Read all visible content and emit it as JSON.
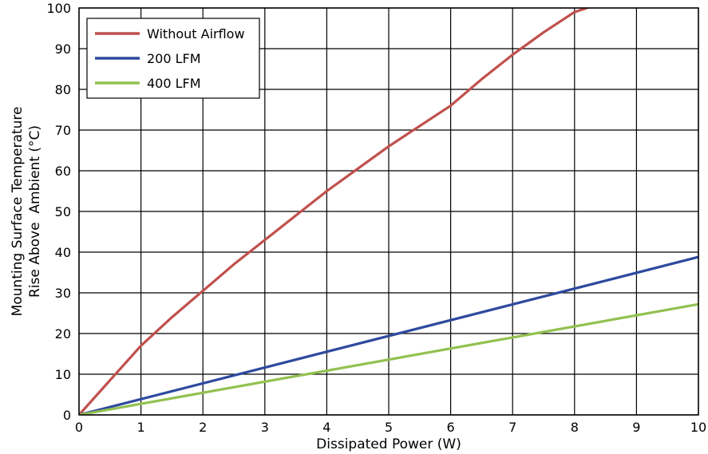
{
  "chart_data": {
    "type": "line",
    "title": "",
    "xlabel": "Dissipated Power (W)",
    "ylabel_lines": [
      "Mounting Surface Temperature",
      "Rise Above  Ambient (°C)"
    ],
    "xlim": [
      0,
      10
    ],
    "ylim": [
      0,
      100
    ],
    "xticks": [
      0,
      1,
      2,
      3,
      4,
      5,
      6,
      7,
      8,
      9,
      10
    ],
    "yticks": [
      0,
      10,
      20,
      30,
      40,
      50,
      60,
      70,
      80,
      90,
      100
    ],
    "grid": true,
    "legend_position": "top-left",
    "series": [
      {
        "name": "Without Airflow",
        "color": "#c0504d",
        "x": [
          0,
          0.5,
          1,
          1.5,
          2,
          2.5,
          3,
          3.5,
          4,
          4.5,
          5,
          5.5,
          6,
          6.5,
          7,
          7.5,
          8,
          8.2
        ],
        "y": [
          0,
          8.5,
          17,
          24,
          30.5,
          37,
          43,
          49,
          55,
          60.5,
          66,
          71,
          76,
          82.5,
          88.5,
          94,
          99,
          100
        ]
      },
      {
        "name": "200 LFM",
        "color": "#2e4a9e",
        "x": [
          0,
          10
        ],
        "y": [
          0,
          38.8
        ]
      },
      {
        "name": "400 LFM",
        "color": "#92c150",
        "x": [
          0,
          10
        ],
        "y": [
          0,
          27.2
        ]
      }
    ]
  }
}
